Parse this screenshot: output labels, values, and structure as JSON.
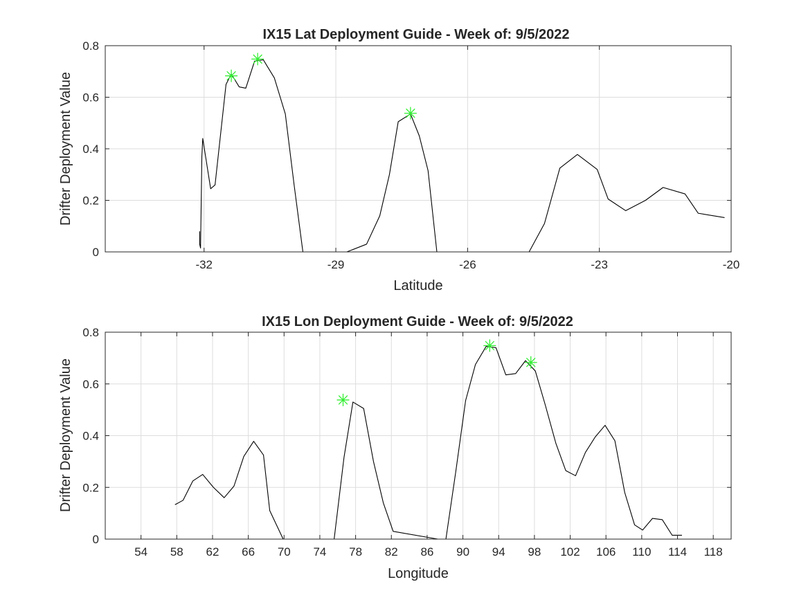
{
  "figure": {
    "background": "#ffffff"
  },
  "chart_data": [
    {
      "type": "line",
      "title": "IX15 Lat Deployment Guide - Week of: 9/5/2022",
      "xlabel": "Latitude",
      "ylabel": "Drifter Deployment Value",
      "xlim": [
        -34.25,
        -20.0
      ],
      "ylim": [
        0,
        0.8
      ],
      "xticks": [
        -32,
        -29,
        -26,
        -23,
        -20
      ],
      "xtick_labels": [
        "-32",
        "-29",
        "-26",
        "-23",
        "-20"
      ],
      "yticks": [
        0,
        0.2,
        0.4,
        0.6,
        0.8
      ],
      "ytick_labels": [
        "0",
        "0.2",
        "0.4",
        "0.6",
        "0.8"
      ],
      "grid": true,
      "line_color": "#000000",
      "marker_color": "#33ee33",
      "series": [
        {
          "x": [
            -32.1,
            -32.1,
            -32.08,
            -32.05,
            -32.03,
            -31.85,
            -31.75,
            -31.5,
            -31.38,
            -31.2,
            -31.05,
            -30.85,
            -30.65,
            -30.4,
            -30.15,
            -29.95,
            -29.75,
            -28.95,
            -28.75,
            -28.3,
            -28.0,
            -27.78,
            -27.58,
            -27.3,
            -27.1,
            -26.9,
            -26.7,
            -26.35,
            -24.6,
            -24.25,
            -23.9,
            -23.5,
            -23.05,
            -22.8,
            -22.4,
            -21.95,
            -21.55,
            -21.05,
            -20.75,
            -20.15
          ],
          "y": [
            0.08,
            0.03,
            0.015,
            0.37,
            0.44,
            0.245,
            0.26,
            0.65,
            0.69,
            0.64,
            0.635,
            0.74,
            0.745,
            0.675,
            0.535,
            0.26,
            0.0,
            0.0,
            0.0,
            0.03,
            0.14,
            0.3,
            0.505,
            0.535,
            0.45,
            0.315,
            0.0,
            0.0,
            0.0,
            0.11,
            0.325,
            0.378,
            0.32,
            0.205,
            0.16,
            0.2,
            0.25,
            0.225,
            0.15,
            0.133
          ]
        }
      ],
      "markers": [
        {
          "x": -31.38,
          "y": 0.683
        },
        {
          "x": -30.78,
          "y": 0.748
        },
        {
          "x": -27.3,
          "y": 0.538
        }
      ]
    },
    {
      "type": "line",
      "title": "IX15 Lon Deployment Guide - Week of: 9/5/2022",
      "xlabel": "Longitude",
      "ylabel": "Drifter Deployment Value",
      "xlim": [
        50,
        120
      ],
      "ylim": [
        0,
        0.8
      ],
      "xticks": [
        54,
        58,
        62,
        66,
        70,
        74,
        78,
        82,
        86,
        90,
        94,
        98,
        102,
        106,
        110,
        114,
        118
      ],
      "xtick_labels": [
        "54",
        "58",
        "62",
        "66",
        "70",
        "74",
        "78",
        "82",
        "86",
        "90",
        "94",
        "98",
        "102",
        "106",
        "110",
        "114",
        "118"
      ],
      "yticks": [
        0,
        0.2,
        0.4,
        0.6,
        0.8
      ],
      "ytick_labels": [
        "0",
        "0.2",
        "0.4",
        "0.6",
        "0.8"
      ],
      "grid": true,
      "line_color": "#000000",
      "marker_color": "#33ee33",
      "series": [
        {
          "x": [
            57.8,
            58.7,
            59.8,
            60.9,
            62.1,
            63.3,
            64.4,
            65.5,
            66.6,
            67.7,
            68.4,
            69.9,
            74.8,
            75.6,
            76.7,
            77.7,
            78.9,
            80.0,
            81.1,
            82.2,
            87.2,
            88.1,
            89.2,
            90.3,
            91.4,
            92.6,
            93.7,
            94.8,
            95.9,
            97.0,
            98.1,
            99.2,
            100.4,
            101.5,
            102.6,
            103.7,
            104.8,
            105.9,
            107.0,
            108.1,
            109.2,
            110.1,
            111.2,
            112.3,
            113.4,
            114.5
          ],
          "y": [
            0.133,
            0.15,
            0.225,
            0.25,
            0.2,
            0.16,
            0.205,
            0.32,
            0.378,
            0.325,
            0.11,
            0.0,
            0.0,
            0.0,
            0.315,
            0.53,
            0.505,
            0.3,
            0.14,
            0.03,
            0.0,
            0.0,
            0.26,
            0.535,
            0.675,
            0.745,
            0.74,
            0.635,
            0.64,
            0.69,
            0.65,
            0.52,
            0.37,
            0.265,
            0.245,
            0.335,
            0.395,
            0.44,
            0.38,
            0.18,
            0.055,
            0.035,
            0.08,
            0.075,
            0.015,
            0.015
          ]
        }
      ],
      "markers": [
        {
          "x": 76.6,
          "y": 0.538
        },
        {
          "x": 93.0,
          "y": 0.748
        },
        {
          "x": 97.6,
          "y": 0.683
        }
      ]
    }
  ]
}
